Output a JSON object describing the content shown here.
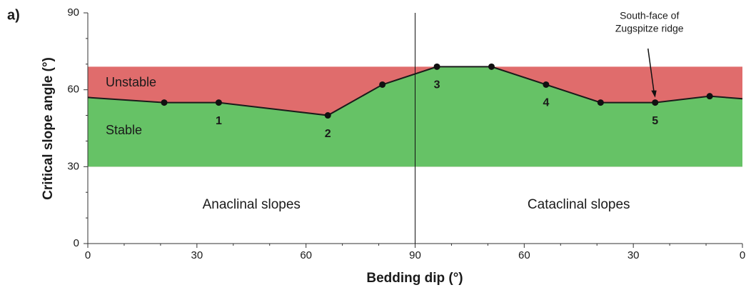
{
  "chart_data": {
    "type": "line",
    "panel_label": "a)",
    "x_label": "Bedding dip (°)",
    "y_label": "Critical slope angle (°)",
    "xlim": [
      0,
      180
    ],
    "ylim": [
      0,
      90
    ],
    "xticks": [
      0,
      30,
      60,
      90,
      {
        "value": 120,
        "label": "60"
      },
      {
        "value": 150,
        "label": "30"
      },
      {
        "value": 180,
        "label": "0"
      }
    ],
    "yticks": [
      0,
      30,
      60,
      90
    ],
    "xticks_minor": [
      10,
      20,
      40,
      50,
      70,
      80,
      100,
      110,
      130,
      140,
      160,
      170
    ],
    "yticks_minor": [
      10,
      20,
      40,
      50,
      70,
      80
    ],
    "divider_x": 90,
    "series": [
      {
        "color": "#1a1a1a",
        "x": [
          0,
          21,
          36,
          66,
          81,
          96,
          111,
          126,
          141,
          156,
          171,
          180
        ],
        "values": [
          57,
          55,
          55,
          50,
          62,
          69,
          69,
          62,
          55,
          55,
          57.5,
          56.5
        ]
      }
    ],
    "points": {
      "color": "#111111",
      "x": [
        21,
        36,
        66,
        81,
        96,
        111,
        126,
        141,
        156,
        171
      ],
      "values": [
        55,
        55,
        50,
        62,
        69,
        69,
        62,
        55,
        55,
        57.5
      ]
    },
    "unstable_band": {
      "label": "Unstable",
      "color": "#e06c6c",
      "top": 69
    },
    "stable_area": {
      "label": "Stable",
      "color": "#66c266",
      "bottom": 30
    },
    "point_labels": [
      {
        "text": "1",
        "x": 36,
        "y": 55
      },
      {
        "text": "2",
        "x": 66,
        "y": 50
      },
      {
        "text": "3",
        "x": 96,
        "y": 69
      },
      {
        "text": "4",
        "x": 126,
        "y": 62
      },
      {
        "text": "5",
        "x": 156,
        "y": 55
      }
    ],
    "region_labels": [
      {
        "text": "Anaclinal slopes",
        "x": 45,
        "y": 15
      },
      {
        "text": "Cataclinal slopes",
        "x": 135,
        "y": 15
      }
    ],
    "callout": {
      "lines": [
        "South-face of",
        "Zugspitze ridge"
      ],
      "x": 156,
      "y": 55
    }
  }
}
